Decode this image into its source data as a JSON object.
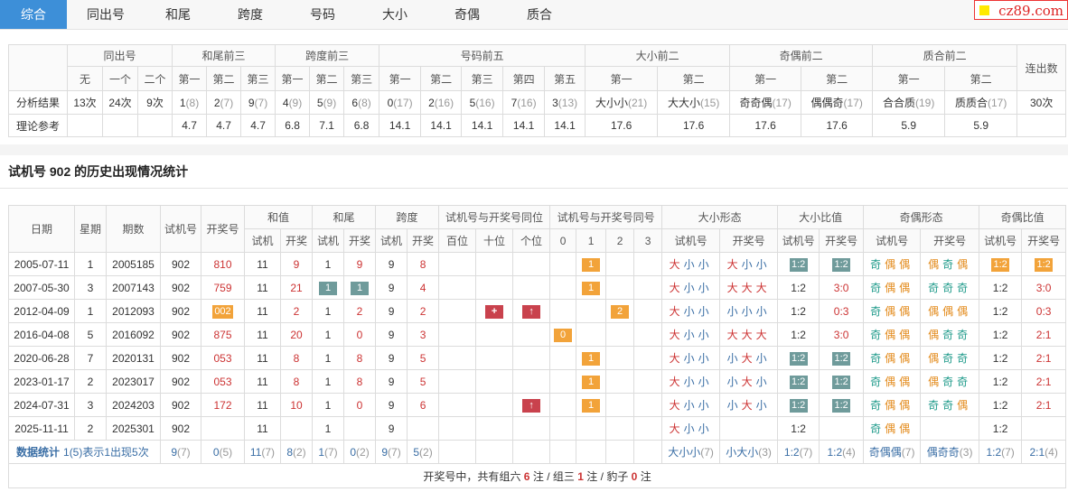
{
  "tabs": {
    "items": [
      "综合",
      "同出号",
      "和尾",
      "跨度",
      "号码",
      "大小",
      "奇偶",
      "质合"
    ],
    "active": 0
  },
  "logo": "cz89.com",
  "summary": {
    "groups": [
      {
        "label": "同出号",
        "cols": [
          "无",
          "一个",
          "二个"
        ]
      },
      {
        "label": "和尾前三",
        "cols": [
          "第一",
          "第二",
          "第三"
        ]
      },
      {
        "label": "跨度前三",
        "cols": [
          "第一",
          "第二",
          "第三"
        ]
      },
      {
        "label": "号码前五",
        "cols": [
          "第一",
          "第二",
          "第三",
          "第四",
          "第五"
        ]
      },
      {
        "label": "大小前二",
        "cols": [
          "第一",
          "第二"
        ]
      },
      {
        "label": "奇偶前二",
        "cols": [
          "第一",
          "第二"
        ]
      },
      {
        "label": "质合前二",
        "cols": [
          "第一",
          "第二"
        ]
      }
    ],
    "last": "连出数",
    "rows": [
      {
        "label": "分析结果",
        "cells": [
          "13次",
          "24次",
          "9次",
          [
            "1",
            "(8)"
          ],
          [
            "2",
            "(7)"
          ],
          [
            "9",
            "(7)"
          ],
          [
            "4",
            "(9)"
          ],
          [
            "5",
            "(9)"
          ],
          [
            "6",
            "(8)"
          ],
          [
            "0",
            "(17)"
          ],
          [
            "2",
            "(16)"
          ],
          [
            "5",
            "(16)"
          ],
          [
            "7",
            "(16)"
          ],
          [
            "3",
            "(13)"
          ],
          [
            "大小小",
            "(21)"
          ],
          [
            "大大小",
            "(15)"
          ],
          [
            "奇奇偶",
            "(17)"
          ],
          [
            "偶偶奇",
            "(17)"
          ],
          [
            "合合质",
            "(19)"
          ],
          [
            "质质合",
            "(17)"
          ],
          "30次"
        ]
      },
      {
        "label": "理论参考",
        "cells": [
          null,
          null,
          null,
          "4.7",
          "4.7",
          "4.7",
          "6.8",
          "7.1",
          "6.8",
          "14.1",
          "14.1",
          "14.1",
          "14.1",
          "14.1",
          "17.6",
          "17.6",
          "17.6",
          "17.6",
          "5.9",
          "5.9",
          null
        ]
      }
    ]
  },
  "history": {
    "title": "试机号 902 的历史出现情况统计",
    "head": [
      {
        "label": "日期"
      },
      {
        "label": "星期"
      },
      {
        "label": "期数"
      },
      {
        "label": "试机号"
      },
      {
        "label": "开奖号"
      },
      {
        "label": "和值",
        "cols": [
          "试机",
          "开奖"
        ]
      },
      {
        "label": "和尾",
        "cols": [
          "试机",
          "开奖"
        ]
      },
      {
        "label": "跨度",
        "cols": [
          "试机",
          "开奖"
        ]
      },
      {
        "label": "试机号与开奖号同位",
        "cols": [
          "百位",
          "十位",
          "个位"
        ]
      },
      {
        "label": "试机号与开奖号同号",
        "cols": [
          "0",
          "1",
          "2",
          "3"
        ]
      },
      {
        "label": "大小形态",
        "cols": [
          "试机号",
          "开奖号"
        ]
      },
      {
        "label": "大小比值",
        "cols": [
          "试机号",
          "开奖号"
        ]
      },
      {
        "label": "奇偶形态",
        "cols": [
          "试机号",
          "开奖号"
        ]
      },
      {
        "label": "奇偶比值",
        "cols": [
          "试机号",
          "开奖号"
        ]
      }
    ],
    "rows": [
      [
        "2005-07-11",
        "1",
        "2005185",
        "902",
        "810",
        "11",
        "9",
        "1",
        "9",
        "9",
        "8",
        null,
        null,
        null,
        null,
        {
          "t": "1",
          "b": "o"
        },
        null,
        null,
        "大小小",
        "大小小",
        {
          "t": "1:2",
          "b": "g"
        },
        {
          "t": "1:2",
          "b": "g"
        },
        "奇偶偶",
        "偶奇偶",
        {
          "t": "1:2",
          "b": "o"
        },
        {
          "t": "1:2",
          "b": "o"
        }
      ],
      [
        "2007-05-30",
        "3",
        "2007143",
        "902",
        "759",
        "11",
        "21",
        {
          "t": "1",
          "b": "g"
        },
        {
          "t": "1",
          "b": "g"
        },
        "9",
        "4",
        null,
        null,
        null,
        null,
        {
          "t": "1",
          "b": "o"
        },
        null,
        null,
        "大小小",
        "大大大",
        "1:2",
        "3:0",
        "奇偶偶",
        "奇奇奇",
        "1:2",
        "3:0"
      ],
      [
        "2012-04-09",
        "1",
        "2012093",
        "902",
        {
          "t": "002",
          "b": "o"
        },
        "11",
        "2",
        "1",
        "2",
        "9",
        "2",
        null,
        {
          "t": "+",
          "b": "r"
        },
        {
          "t": "↑",
          "b": "r"
        },
        null,
        null,
        {
          "t": "2",
          "b": "o"
        },
        null,
        "大小小",
        "小小小",
        "1:2",
        "0:3",
        "奇偶偶",
        "偶偶偶",
        "1:2",
        "0:3"
      ],
      [
        "2016-04-08",
        "5",
        "2016092",
        "902",
        "875",
        "11",
        "20",
        "1",
        "0",
        "9",
        "3",
        null,
        null,
        null,
        {
          "t": "0",
          "b": "o"
        },
        null,
        null,
        null,
        "大小小",
        "大大大",
        "1:2",
        "3:0",
        "奇偶偶",
        "偶奇奇",
        "1:2",
        "2:1"
      ],
      [
        "2020-06-28",
        "7",
        "2020131",
        "902",
        "053",
        "11",
        "8",
        "1",
        "8",
        "9",
        "5",
        null,
        null,
        null,
        null,
        {
          "t": "1",
          "b": "o"
        },
        null,
        null,
        "大小小",
        "小大小",
        {
          "t": "1:2",
          "b": "g"
        },
        {
          "t": "1:2",
          "b": "g"
        },
        "奇偶偶",
        "偶奇奇",
        "1:2",
        "2:1"
      ],
      [
        "2023-01-17",
        "2",
        "2023017",
        "902",
        "053",
        "11",
        "8",
        "1",
        "8",
        "9",
        "5",
        null,
        null,
        null,
        null,
        {
          "t": "1",
          "b": "o"
        },
        null,
        null,
        "大小小",
        "小大小",
        {
          "t": "1:2",
          "b": "g"
        },
        {
          "t": "1:2",
          "b": "g"
        },
        "奇偶偶",
        "偶奇奇",
        "1:2",
        "2:1"
      ],
      [
        "2024-07-31",
        "3",
        "2024203",
        "902",
        "172",
        "11",
        "10",
        "1",
        "0",
        "9",
        "6",
        null,
        null,
        {
          "t": "↑",
          "b": "r"
        },
        null,
        {
          "t": "1",
          "b": "o"
        },
        null,
        null,
        "大小小",
        "小大小",
        {
          "t": "1:2",
          "b": "g"
        },
        {
          "t": "1:2",
          "b": "g"
        },
        "奇偶偶",
        "奇奇偶",
        "1:2",
        "2:1"
      ],
      [
        "2025-11-11",
        "2",
        "2025301",
        "902",
        null,
        "11",
        null,
        "1",
        null,
        "9",
        null,
        null,
        null,
        null,
        null,
        null,
        null,
        null,
        "大小小",
        null,
        "1:2",
        null,
        "奇偶偶",
        null,
        "1:2",
        null
      ]
    ],
    "stats": {
      "label": "数据统计",
      "note": "1(5)表示1出现5次",
      "cells": [
        [
          "9",
          "(7)"
        ],
        [
          "0",
          "(5)"
        ],
        [
          "11",
          "(7)"
        ],
        [
          "8",
          "(2)"
        ],
        [
          "1",
          "(7)"
        ],
        [
          "0",
          "(2)"
        ],
        [
          "9",
          "(7)"
        ],
        [
          "5",
          "(2)"
        ],
        null,
        null,
        null,
        null,
        null,
        null,
        null,
        [
          "大小小",
          "(7)"
        ],
        [
          "小大小",
          "(3)"
        ],
        [
          "1:2",
          "(7)"
        ],
        [
          "1:2",
          "(4)"
        ],
        [
          "奇偶偶",
          "(7)"
        ],
        [
          "偶奇奇",
          "(3)"
        ],
        [
          "1:2",
          "(7)"
        ],
        [
          "2:1",
          "(4)"
        ]
      ]
    },
    "footer": {
      "prefix": "开奖号中，共有",
      "items": [
        {
          "label": "组六",
          "count": "6"
        },
        {
          "label": "组三",
          "count": "1"
        },
        {
          "label": "豹子",
          "count": "0"
        }
      ],
      "unit": "注",
      "sep": "/"
    }
  }
}
